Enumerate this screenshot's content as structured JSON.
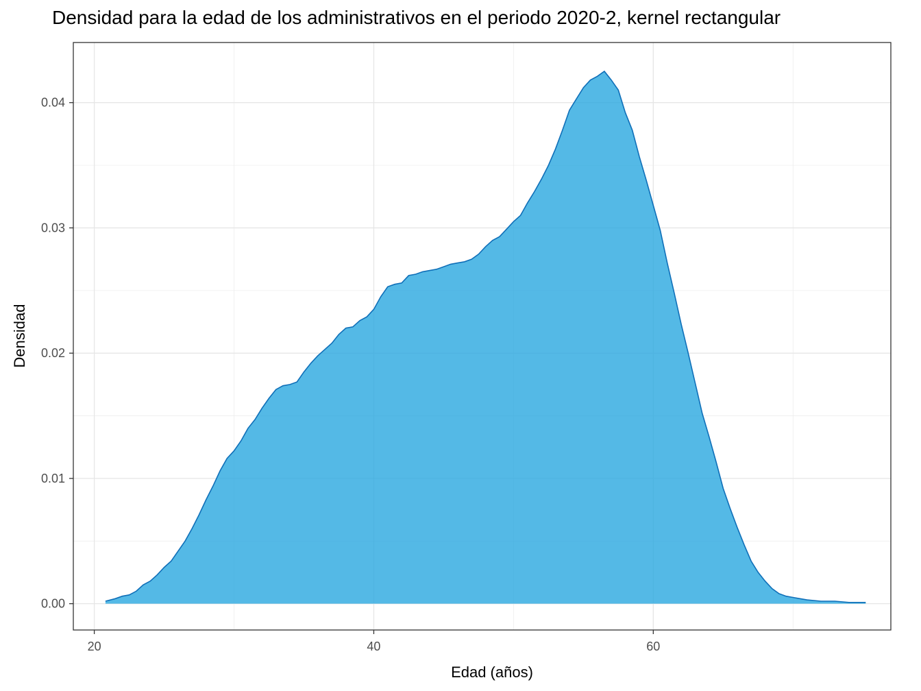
{
  "chart_data": {
    "type": "area",
    "title": "Densidad para la edad de los administrativos en el periodo 2020-2, kernel rectangular",
    "xlabel": "Edad (años)",
    "ylabel": "Densidad",
    "xlim": [
      18.5,
      77
    ],
    "ylim": [
      -0.0021,
      0.0448
    ],
    "x_ticks": [
      20,
      40,
      60
    ],
    "x_tick_labels": [
      "20",
      "40",
      "60"
    ],
    "y_ticks": [
      0,
      0.01,
      0.02,
      0.03,
      0.04
    ],
    "y_tick_labels": [
      "0.00",
      "0.01",
      "0.02",
      "0.03",
      "0.04"
    ],
    "grid": true,
    "fill_color": "#29A8E0",
    "line_color": "#0F6FB8",
    "x": [
      20.8,
      21.5,
      22.0,
      22.5,
      23.0,
      23.5,
      24.0,
      24.5,
      25.0,
      25.5,
      26.0,
      26.5,
      27.0,
      27.5,
      28.0,
      28.5,
      29.0,
      29.5,
      30.0,
      30.5,
      31.0,
      31.5,
      32.0,
      32.5,
      33.0,
      33.5,
      34.0,
      34.5,
      35.0,
      35.5,
      36.0,
      36.5,
      37.0,
      37.5,
      38.0,
      38.5,
      39.0,
      39.5,
      40.0,
      40.5,
      41.0,
      41.5,
      42.0,
      42.5,
      43.0,
      43.5,
      44.0,
      44.5,
      45.0,
      45.5,
      46.0,
      46.5,
      47.0,
      47.5,
      48.0,
      48.5,
      49.0,
      49.5,
      50.0,
      50.5,
      51.0,
      51.5,
      52.0,
      52.5,
      53.0,
      53.5,
      54.0,
      54.5,
      55.0,
      55.5,
      56.0,
      56.5,
      57.0,
      57.5,
      58.0,
      58.5,
      59.0,
      59.5,
      60.0,
      60.5,
      61.0,
      61.5,
      62.0,
      62.5,
      63.0,
      63.5,
      64.0,
      64.5,
      65.0,
      65.5,
      66.0,
      66.5,
      67.0,
      67.5,
      68.0,
      68.5,
      69.0,
      69.5,
      70.0,
      70.5,
      71.0,
      72.0,
      73.0,
      74.0,
      75.2
    ],
    "y": [
      0.0002,
      0.0004,
      0.0006,
      0.0007,
      0.001,
      0.0015,
      0.0018,
      0.0023,
      0.0029,
      0.0034,
      0.0042,
      0.005,
      0.006,
      0.0071,
      0.0083,
      0.0094,
      0.0106,
      0.0116,
      0.0122,
      0.013,
      0.014,
      0.0147,
      0.0156,
      0.0164,
      0.0171,
      0.0174,
      0.0175,
      0.0177,
      0.0185,
      0.0192,
      0.0198,
      0.0203,
      0.0208,
      0.0215,
      0.022,
      0.0221,
      0.0226,
      0.0229,
      0.0235,
      0.0245,
      0.0253,
      0.0255,
      0.0256,
      0.0262,
      0.0263,
      0.0265,
      0.0266,
      0.0267,
      0.0269,
      0.0271,
      0.0272,
      0.0273,
      0.0275,
      0.0279,
      0.0285,
      0.029,
      0.0293,
      0.0299,
      0.0305,
      0.031,
      0.032,
      0.0329,
      0.0339,
      0.035,
      0.0363,
      0.0378,
      0.0394,
      0.0403,
      0.0412,
      0.0418,
      0.0421,
      0.0425,
      0.0418,
      0.041,
      0.0392,
      0.0378,
      0.0357,
      0.0338,
      0.0318,
      0.0298,
      0.0272,
      0.0248,
      0.0223,
      0.02,
      0.0176,
      0.0152,
      0.0133,
      0.0113,
      0.0092,
      0.0076,
      0.0061,
      0.0047,
      0.0034,
      0.0025,
      0.0018,
      0.0012,
      0.0008,
      0.0006,
      0.0005,
      0.0004,
      0.0003,
      0.0002,
      0.0002,
      0.0001,
      0.0001
    ]
  }
}
